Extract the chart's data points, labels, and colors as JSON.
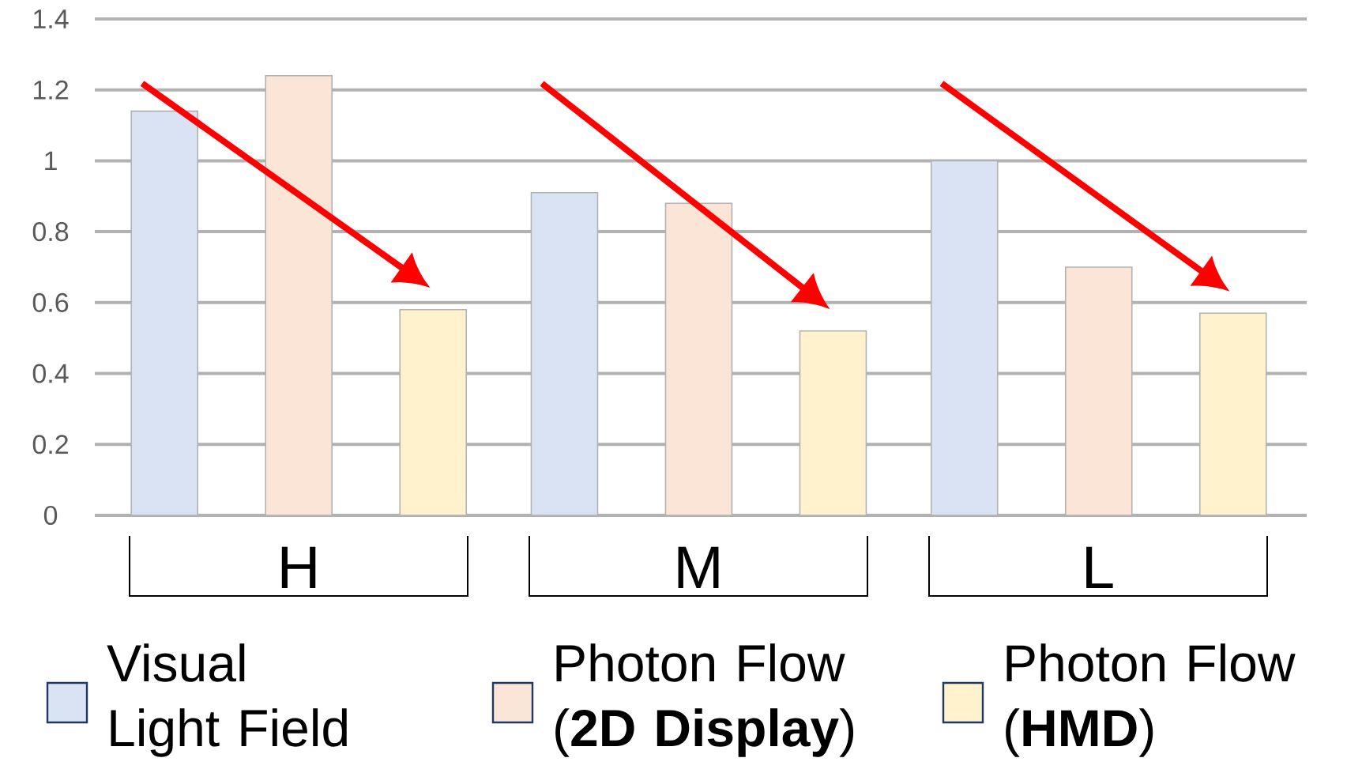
{
  "chart_data": {
    "type": "bar",
    "categories": [
      "H",
      "M",
      "L"
    ],
    "series": [
      {
        "name": "Visual Light Field",
        "color": "#dae3f3",
        "values": [
          1.14,
          0.91,
          1.0
        ]
      },
      {
        "name": "Photon Flow (**2D Display**)",
        "color": "#fbe5d6",
        "values": [
          1.24,
          0.88,
          0.7
        ]
      },
      {
        "name": "Photon Flow (**HMD**)",
        "color": "#fff2cc",
        "values": [
          0.58,
          0.52,
          0.57
        ]
      }
    ],
    "ylim": [
      0,
      1.4
    ],
    "yticks": [
      0,
      0.2,
      0.4,
      0.6,
      0.8,
      1,
      1.2,
      1.4
    ],
    "grid": "y",
    "legend": "bottom"
  }
}
